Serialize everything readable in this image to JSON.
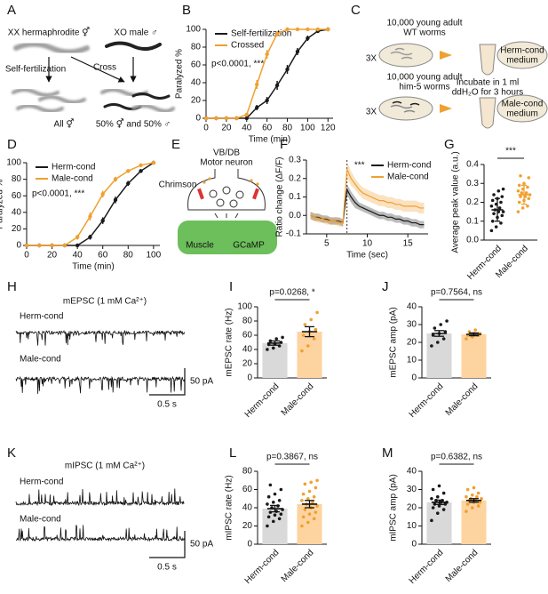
{
  "chart_data": [
    {
      "type": "diagram",
      "label": "A",
      "texts": [
        "XX hermaphrodite ⚥",
        "XO male ♂",
        "Self-fertilization",
        "Cross",
        "All ⚥",
        "50% ⚥ and 50% ♂"
      ]
    },
    {
      "type": "line",
      "label": "B",
      "xlabel": "Time (min)",
      "ylabel": "Paralyzed %",
      "x": [
        0,
        10,
        20,
        30,
        40,
        50,
        60,
        70,
        80,
        90,
        100,
        110,
        120
      ],
      "series": [
        {
          "name": "Self-fertilization",
          "color": "#1a1a1a",
          "values": [
            0,
            0,
            0,
            0,
            0,
            12,
            20,
            37,
            55,
            75,
            90,
            98,
            100
          ],
          "errors": [
            0,
            0,
            0,
            0,
            0,
            3,
            4,
            5,
            5,
            4,
            3,
            2,
            0
          ]
        },
        {
          "name": "Crossed",
          "color": "#f0a030",
          "values": [
            0,
            0,
            0,
            0,
            4,
            38,
            72,
            95,
            100,
            100,
            100,
            100,
            100
          ],
          "errors": [
            0,
            0,
            0,
            0,
            2,
            5,
            5,
            3,
            0,
            0,
            0,
            0,
            0
          ]
        }
      ],
      "xlim": [
        0,
        125
      ],
      "ylim": [
        0,
        100
      ],
      "xticks": [
        0,
        20,
        40,
        60,
        80,
        100,
        120
      ],
      "yticks": [
        0,
        20,
        40,
        60,
        80,
        100
      ],
      "legend": "upper left",
      "markers": true,
      "annotation": "p<0.0001, ***"
    },
    {
      "type": "diagram",
      "label": "C",
      "texts": [
        "3X",
        "10,000 young adult",
        "WT worms",
        "3X",
        "10,000 young adult",
        "him-5 worms",
        "Incubate in 1 ml",
        "ddH₂O for 3 hours",
        "Herm-cond",
        "medium",
        "Male-cond",
        "medium"
      ]
    },
    {
      "type": "line",
      "label": "D",
      "xlabel": "Time (min)",
      "ylabel": "Paralyzed %",
      "x": [
        0,
        10,
        20,
        30,
        40,
        50,
        60,
        70,
        80,
        90,
        100
      ],
      "series": [
        {
          "name": "Herm-cond",
          "color": "#1a1a1a",
          "values": [
            0,
            0,
            0,
            0,
            0,
            10,
            30,
            55,
            75,
            90,
            100
          ],
          "errors": [
            0,
            0,
            0,
            0,
            0,
            3,
            4,
            4,
            3,
            2,
            0
          ]
        },
        {
          "name": "Male-cond",
          "color": "#f0a030",
          "values": [
            0,
            0,
            0,
            0,
            10,
            35,
            62,
            80,
            90,
            97,
            100
          ],
          "errors": [
            0,
            0,
            0,
            0,
            3,
            5,
            4,
            3,
            2,
            1,
            0
          ]
        }
      ],
      "xlim": [
        0,
        105
      ],
      "ylim": [
        0,
        100
      ],
      "xticks": [
        0,
        20,
        40,
        60,
        80,
        100
      ],
      "yticks": [
        0,
        20,
        40,
        60,
        80,
        100
      ],
      "legend": "upper left",
      "markers": true,
      "annotation": "p<0.0001, ***"
    },
    {
      "type": "diagram",
      "label": "E",
      "texts": [
        "VB/DB",
        "Motor neuron",
        "Chrimson",
        "Muscle",
        "GCaMP"
      ]
    },
    {
      "type": "line",
      "label": "F",
      "xlabel": "Time (sec)",
      "ylabel": "Ratio change (ΔF/F)",
      "x": [
        3,
        3.5,
        4,
        4.5,
        5,
        5.5,
        6,
        6.5,
        7,
        7.5,
        8,
        8.5,
        9,
        9.5,
        10,
        10.5,
        11,
        11.5,
        12,
        12.5,
        13,
        13.5,
        14,
        14.5,
        15,
        15.5,
        16,
        16.5,
        17
      ],
      "series": [
        {
          "name": "Herm-cond",
          "color": "#1a1a1a",
          "values": [
            0,
            -0.01,
            -0.01,
            -0.02,
            -0.02,
            -0.03,
            -0.03,
            -0.03,
            -0.04,
            0.14,
            0.1,
            0.07,
            0.05,
            0.04,
            0.03,
            0.02,
            0.01,
            0,
            0,
            -0.01,
            -0.01,
            -0.02,
            -0.02,
            -0.03,
            -0.03,
            -0.04,
            -0.04,
            -0.05,
            -0.05
          ],
          "errors": [
            0.02,
            0.02,
            0.02,
            0.02,
            0.02,
            0.02,
            0.02,
            0.02,
            0.02,
            0.03,
            0.03,
            0.03,
            0.02,
            0.02,
            0.02,
            0.02,
            0.02,
            0.02,
            0.02,
            0.02,
            0.02,
            0.02,
            0.02,
            0.02,
            0.02,
            0.02,
            0.02,
            0.02,
            0.02
          ]
        },
        {
          "name": "Male-cond",
          "color": "#f0a030",
          "values": [
            0,
            -0.01,
            -0.02,
            -0.02,
            -0.03,
            -0.03,
            -0.03,
            -0.04,
            -0.04,
            0.25,
            0.2,
            0.17,
            0.14,
            0.12,
            0.11,
            0.1,
            0.09,
            0.08,
            0.08,
            0.07,
            0.07,
            0.06,
            0.06,
            0.05,
            0.05,
            0.05,
            0.05,
            0.04,
            0.04
          ],
          "errors": [
            0.02,
            0.02,
            0.02,
            0.02,
            0.02,
            0.02,
            0.02,
            0.02,
            0.02,
            0.04,
            0.04,
            0.03,
            0.03,
            0.03,
            0.03,
            0.03,
            0.03,
            0.03,
            0.03,
            0.03,
            0.03,
            0.03,
            0.03,
            0.03,
            0.03,
            0.03,
            0.03,
            0.03,
            0.03
          ]
        }
      ],
      "xlim": [
        2.5,
        17.5
      ],
      "ylim": [
        -0.1,
        0.3
      ],
      "xticks": [
        5,
        10,
        15
      ],
      "yticks": [
        -0.1,
        {
          "value": 0,
          "label": "0.0"
        },
        0.1,
        0.2,
        0.3
      ],
      "legend": "upper right",
      "error_style": "band",
      "marker_x": 7.5,
      "annotation": "***"
    },
    {
      "type": "strip",
      "label": "G",
      "ylabel": "Average peak value (a.u.)",
      "categories": [
        "Herm-cond",
        "Male-cond"
      ],
      "values": [
        0.16,
        0.24
      ],
      "errors": [
        0.06,
        0.05
      ],
      "points": [
        [
          0.05,
          0.07,
          0.09,
          0.1,
          0.12,
          0.13,
          0.14,
          0.15,
          0.15,
          0.16,
          0.17,
          0.18,
          0.19,
          0.2,
          0.21,
          0.22,
          0.23,
          0.24,
          0.26,
          0.27
        ],
        [
          0.15,
          0.17,
          0.18,
          0.2,
          0.21,
          0.22,
          0.23,
          0.23,
          0.24,
          0.25,
          0.25,
          0.26,
          0.27,
          0.28,
          0.29,
          0.3,
          0.33,
          0.34
        ]
      ],
      "colors": [
        "#1a1a1a",
        "#f0a030"
      ],
      "ylim": [
        0,
        0.4
      ],
      "yticks": [
        {
          "value": 0,
          "label": "0.0"
        },
        0.1,
        0.2,
        0.3,
        0.4
      ],
      "annotation": "***"
    },
    {
      "type": "trace",
      "label": "H",
      "title": "mEPSC (1 mM Ca²⁺)",
      "traces": [
        "Herm-cond",
        "Male-cond"
      ],
      "scale_y": "50 pA",
      "scale_x": "0.5 s"
    },
    {
      "type": "bar",
      "label": "I",
      "ylabel": "mEPSC rate (Hz)",
      "categories": [
        "Herm-cond",
        "Male-cond"
      ],
      "values": [
        49,
        65
      ],
      "errors": [
        3,
        7
      ],
      "points": [
        [
          40,
          42,
          45,
          47,
          48,
          50,
          52,
          55,
          57
        ],
        [
          38,
          45,
          55,
          60,
          65,
          68,
          75,
          82,
          92
        ]
      ],
      "bar_colors": [
        "#d9d9d9",
        "#fdd3a0"
      ],
      "colors": [
        "#1a1a1a",
        "#f0a030"
      ],
      "ylim": [
        0,
        100
      ],
      "yticks": [
        0,
        20,
        40,
        60,
        80,
        100
      ],
      "annotation": "p=0.0268, *"
    },
    {
      "type": "bar",
      "label": "J",
      "ylabel": "mEPSC amp (pA)",
      "categories": [
        "Herm-cond",
        "Male-cond"
      ],
      "values": [
        25,
        24.5
      ],
      "errors": [
        1.6,
        0.8
      ],
      "points": [
        [
          18,
          20,
          22,
          24,
          25,
          26,
          28,
          30,
          32
        ],
        [
          22,
          23,
          24,
          24,
          25,
          25,
          26,
          27
        ]
      ],
      "bar_colors": [
        "#d9d9d9",
        "#fdd3a0"
      ],
      "colors": [
        "#1a1a1a",
        "#f0a030"
      ],
      "ylim": [
        0,
        40
      ],
      "yticks": [
        0,
        10,
        20,
        30,
        40
      ],
      "annotation": "p=0.7564, ns"
    },
    {
      "type": "trace",
      "label": "K",
      "title": "mIPSC (1 mM Ca²⁺)",
      "traces": [
        "Herm-cond",
        "Male-cond"
      ],
      "scale_y": "50 pA",
      "scale_x": "0.5 s"
    },
    {
      "type": "bar",
      "label": "L",
      "ylabel": "mIPSC rate (Hz)",
      "categories": [
        "Herm-cond",
        "Male-cond"
      ],
      "values": [
        39,
        44
      ],
      "errors": [
        3.5,
        4
      ],
      "points": [
        [
          20,
          25,
          28,
          30,
          32,
          33,
          35,
          36,
          38,
          40,
          42,
          44,
          46,
          48,
          52,
          55,
          60,
          65
        ],
        [
          20,
          24,
          28,
          30,
          33,
          35,
          38,
          40,
          42,
          44,
          46,
          48,
          50,
          52,
          55,
          58,
          62,
          66,
          68,
          70
        ]
      ],
      "bar_colors": [
        "#d9d9d9",
        "#fdd3a0"
      ],
      "colors": [
        "#1a1a1a",
        "#f0a030"
      ],
      "ylim": [
        0,
        80
      ],
      "yticks": [
        0,
        20,
        40,
        60,
        80
      ],
      "annotation": "p=0.3867, ns"
    },
    {
      "type": "bar",
      "label": "M",
      "ylabel": "mIPSC amp (pA)",
      "categories": [
        "Herm-cond",
        "Male-cond"
      ],
      "values": [
        23,
        24
      ],
      "errors": [
        1.2,
        1
      ],
      "points": [
        [
          13,
          17,
          19,
          20,
          21,
          22,
          22,
          23,
          23,
          24,
          24,
          25,
          26,
          28,
          30,
          32
        ],
        [
          18,
          20,
          21,
          22,
          23,
          23,
          24,
          24,
          25,
          25,
          26,
          26,
          27,
          28,
          30,
          31
        ]
      ],
      "bar_colors": [
        "#d9d9d9",
        "#fdd3a0"
      ],
      "colors": [
        "#1a1a1a",
        "#f0a030"
      ],
      "ylim": [
        0,
        40
      ],
      "yticks": [
        0,
        10,
        20,
        30,
        40
      ],
      "annotation": "p=0.6382, ns"
    }
  ]
}
